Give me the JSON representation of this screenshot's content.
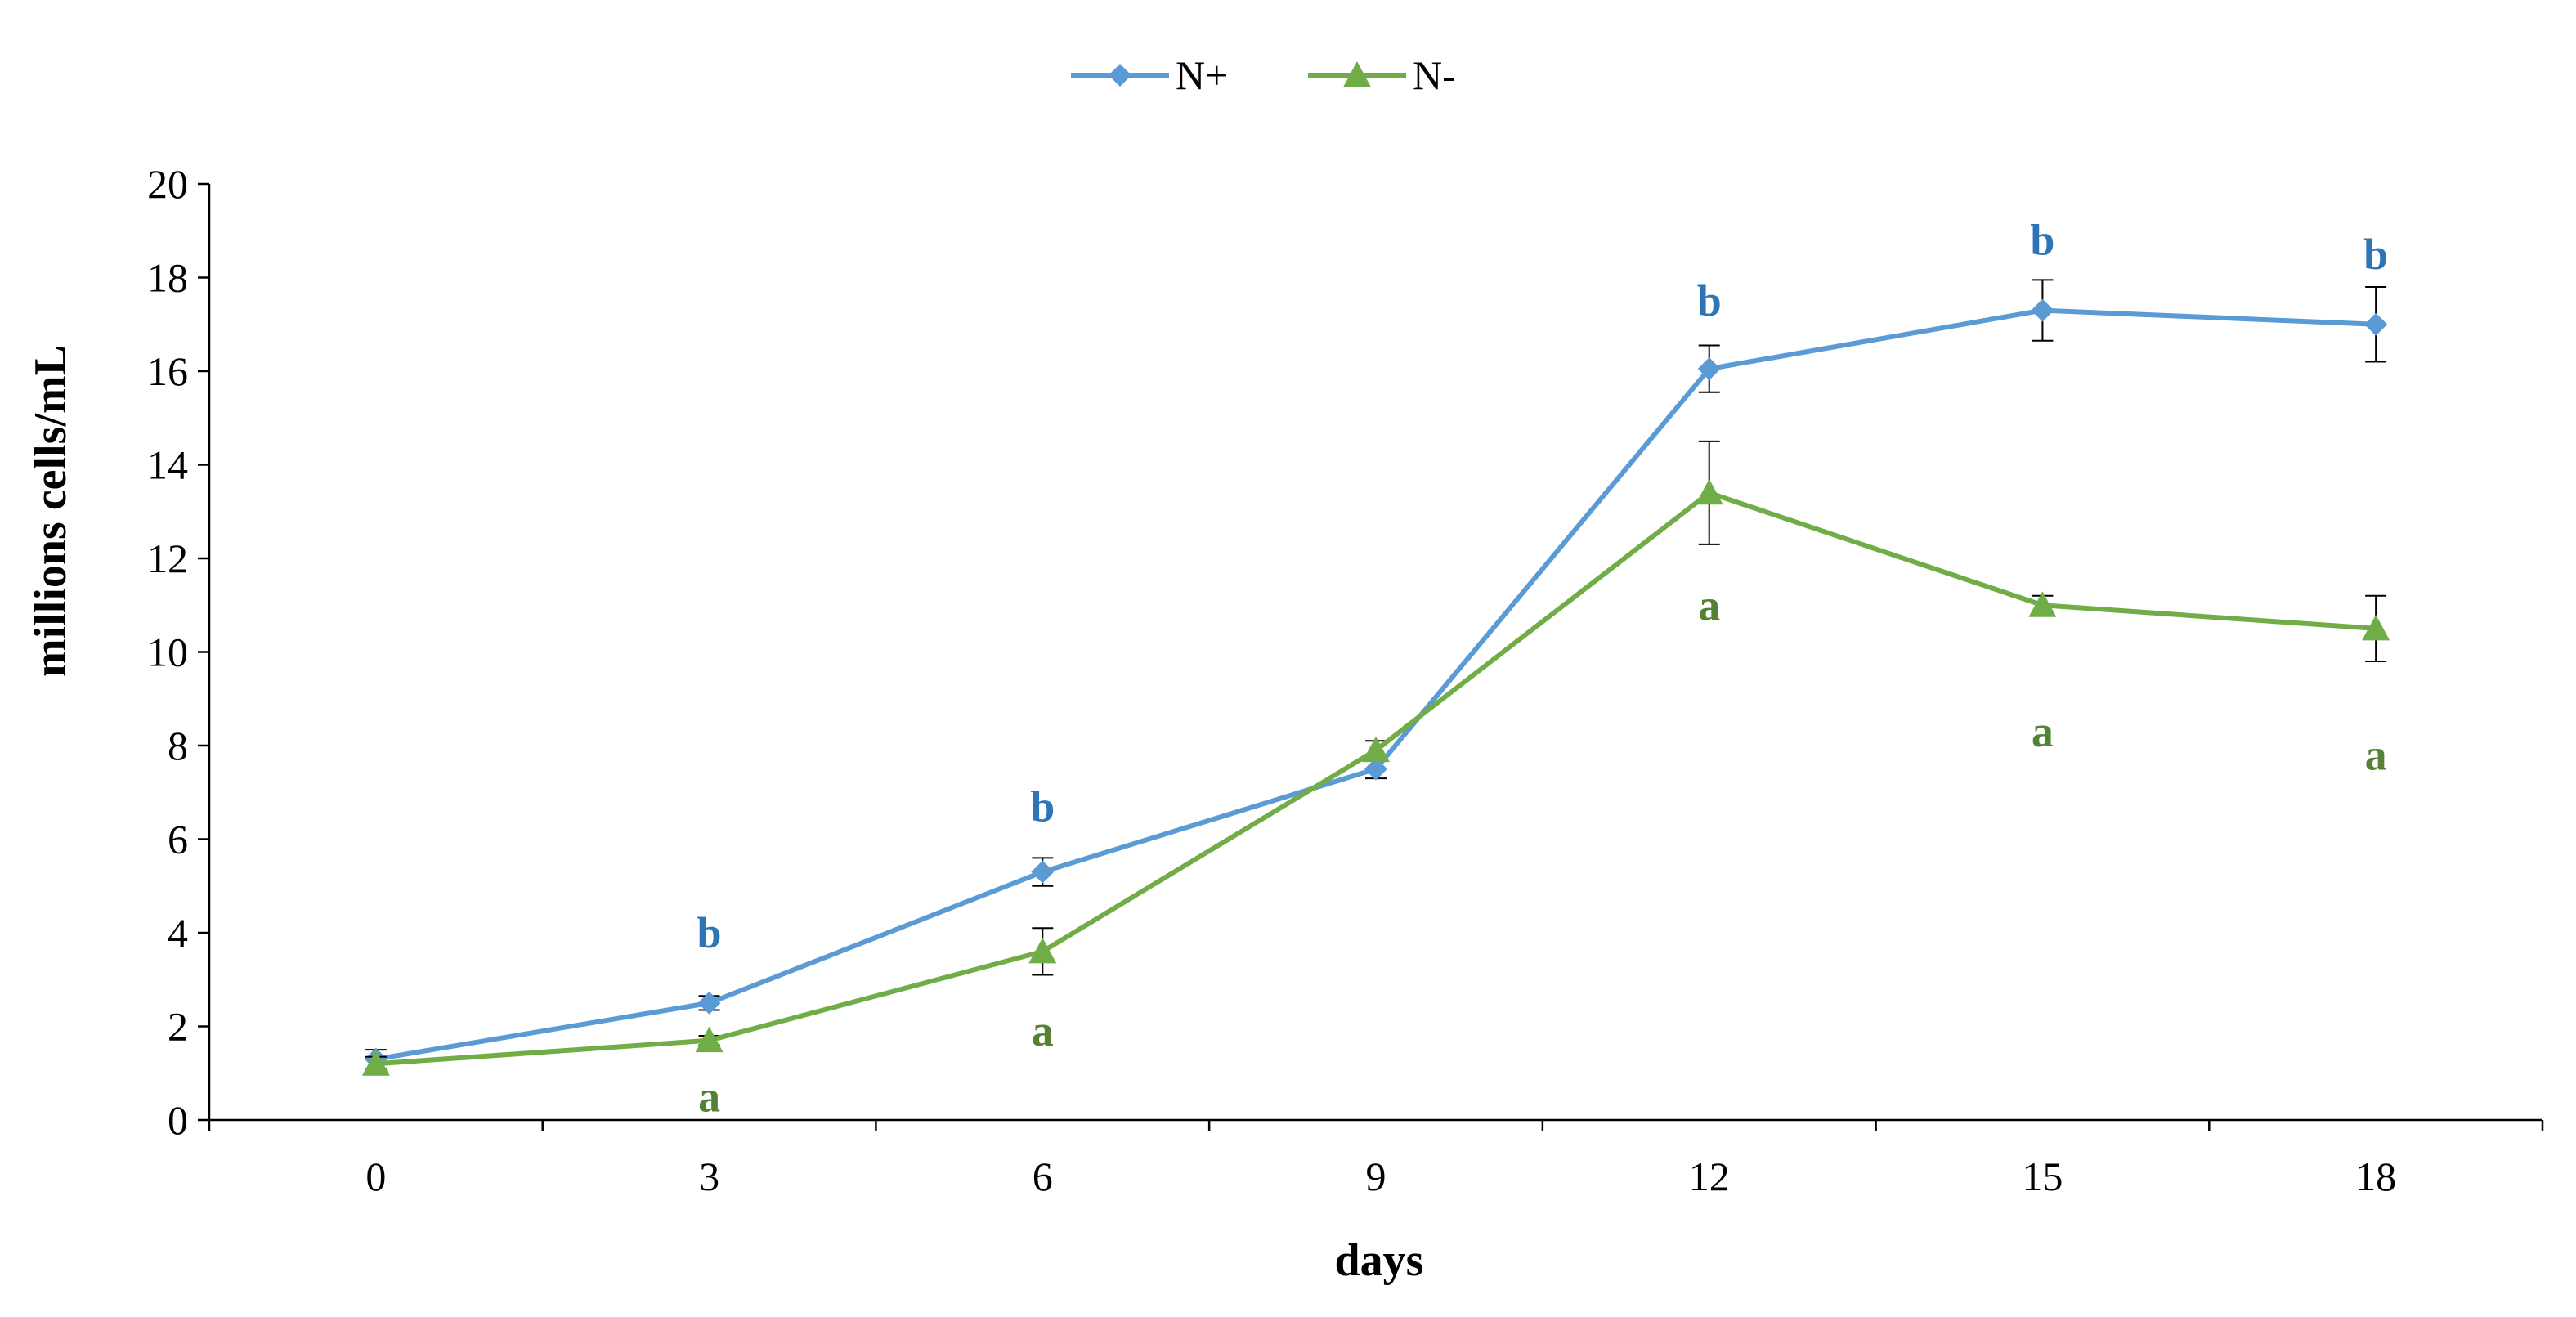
{
  "chart_data": {
    "type": "line",
    "title": "",
    "xlabel": "days",
    "ylabel": "millions cells/mL",
    "x": [
      0,
      3,
      6,
      9,
      12,
      15,
      18
    ],
    "x_tick_labels": [
      "0",
      "3",
      "6",
      "9",
      "12",
      "15",
      "18"
    ],
    "xlim": [
      -1.5,
      19.5
    ],
    "ylim": [
      0,
      20
    ],
    "y_ticks": [
      0,
      2,
      4,
      6,
      8,
      10,
      12,
      14,
      16,
      18,
      20
    ],
    "y_tick_labels": [
      "0",
      "2",
      "4",
      "6",
      "8",
      "10",
      "12",
      "14",
      "16",
      "18",
      "20"
    ],
    "grid": false,
    "legend_position": "top-center",
    "series": [
      {
        "name": "N+",
        "color": "#5B9BD5",
        "label_color": "#2E75B6",
        "marker": "diamond",
        "values": [
          1.3,
          2.5,
          5.3,
          7.5,
          16.05,
          17.3,
          17.0
        ],
        "errors": [
          0.2,
          0.15,
          0.3,
          0.2,
          0.5,
          0.65,
          0.8
        ],
        "sig_labels": [
          "",
          "b",
          "b",
          "",
          "b",
          "b",
          "b"
        ],
        "sig_label_y": [
          null,
          4.0,
          6.7,
          null,
          17.5,
          18.8,
          18.5
        ]
      },
      {
        "name": "N-",
        "color": "#70AD47",
        "label_color": "#548235",
        "marker": "triangle",
        "values": [
          1.2,
          1.7,
          3.6,
          7.9,
          13.4,
          11.0,
          10.5
        ],
        "errors": [
          0.15,
          0.1,
          0.5,
          0.2,
          1.1,
          0.2,
          0.7
        ],
        "sig_labels": [
          "",
          "a",
          "a",
          "",
          "a",
          "a",
          "a"
        ],
        "sig_label_y": [
          null,
          0.5,
          1.9,
          null,
          11.0,
          8.3,
          7.8
        ]
      }
    ]
  }
}
